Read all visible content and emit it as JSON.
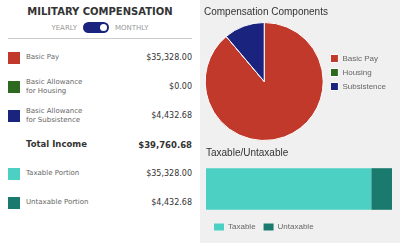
{
  "chart_data": [
    {
      "type": "table",
      "title": "MILITARY COMPENSATION",
      "annotations": [
        "YEARLY",
        "MONTHLY"
      ],
      "categories": [
        "Basic Pay",
        "Basic Allowance\nfor Housing",
        "Basic Allowance\nfor Subsistence",
        "Total Income",
        "Taxable Portion",
        "Untaxable Portion"
      ],
      "value_labels": [
        "$35,328.00",
        "$0.00",
        "$4,432.68",
        "$39,760.68",
        "$35,328.00",
        "$4,432.68"
      ],
      "colors": [
        "#c0392b",
        "#2d6a1f",
        "#1a237e",
        null,
        "#4dd0c4",
        "#1a7a6e"
      ]
    },
    {
      "type": "pie",
      "title": "Compensation Components",
      "categories": [
        "Basic Pay",
        "Housing",
        "Subsistence"
      ],
      "values": [
        35328.0,
        0.01,
        4432.68
      ],
      "colors": [
        "#c0392b",
        "#2d6a1f",
        "#1a237e"
      ],
      "legend": "right"
    },
    {
      "type": "bar",
      "title": "Taxable/Untaxable",
      "orientation": "horizontal",
      "stacked": true,
      "categories": [
        null
      ],
      "series": [
        {
          "name": "Taxable",
          "color": "#4dd0c4",
          "values": [
            0.8885161
          ]
        },
        {
          "name": "Untaxable",
          "color": "#1a7a6e",
          "values": [
            0.1114839
          ]
        }
      ],
      "xlim": [
        0,
        1
      ],
      "tick_labels": false,
      "legend": "bottom"
    }
  ]
}
